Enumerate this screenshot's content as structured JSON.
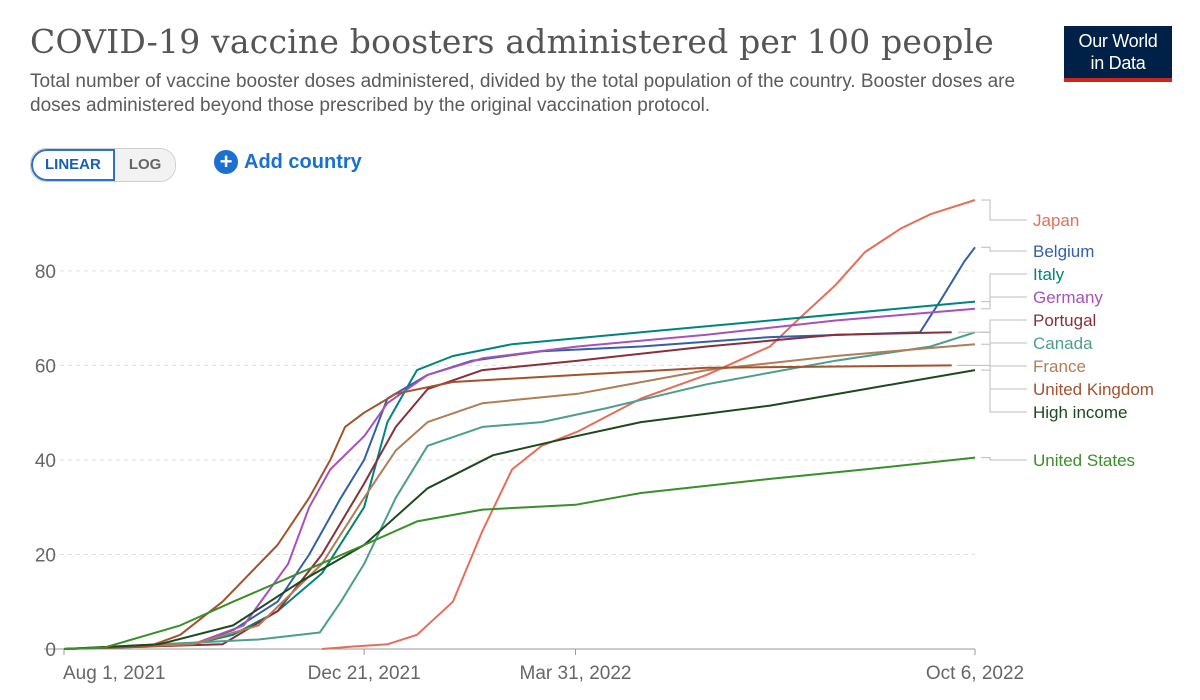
{
  "header": {
    "title": "COVID-19 vaccine boosters administered per 100 people",
    "subtitle": "Total number of vaccine booster doses administered, divided by the total population of the country. Booster doses are doses administered beyond those prescribed by the original vaccination protocol.",
    "logo_line1": "Our World",
    "logo_line2": "in Data"
  },
  "controls": {
    "linear_label": "LINEAR",
    "log_label": "LOG",
    "add_country_label": "Add country",
    "scale_selected": "linear"
  },
  "chart_data": {
    "type": "line",
    "title": "COVID-19 vaccine boosters administered per 100 people",
    "xlabel": "",
    "ylabel": "",
    "ylim": [
      0,
      95
    ],
    "yticks": [
      0,
      20,
      40,
      60,
      80
    ],
    "xlim": [
      "2021-08-01",
      "2022-10-06"
    ],
    "xticks": [
      {
        "date": "2021-08-01",
        "label": "Aug 1, 2021"
      },
      {
        "date": "2021-12-21",
        "label": "Dec 21, 2021"
      },
      {
        "date": "2022-03-31",
        "label": "Mar 31, 2022"
      },
      {
        "date": "2022-10-06",
        "label": "Oct 6, 2022"
      }
    ],
    "grid": "horizontal dashed",
    "legend": "right",
    "series": [
      {
        "name": "Japan",
        "color": "#e56e5a",
        "points": [
          [
            "2021-12-01",
            0
          ],
          [
            "2021-12-15",
            0.5
          ],
          [
            "2022-01-01",
            1
          ],
          [
            "2022-01-15",
            3
          ],
          [
            "2022-02-01",
            10
          ],
          [
            "2022-02-15",
            25
          ],
          [
            "2022-03-01",
            38
          ],
          [
            "2022-03-15",
            43
          ],
          [
            "2022-04-01",
            46
          ],
          [
            "2022-05-01",
            53
          ],
          [
            "2022-06-01",
            58
          ],
          [
            "2022-07-01",
            64
          ],
          [
            "2022-07-15",
            70
          ],
          [
            "2022-08-01",
            77
          ],
          [
            "2022-08-15",
            84
          ],
          [
            "2022-09-01",
            89
          ],
          [
            "2022-09-15",
            92
          ],
          [
            "2022-10-06",
            95
          ]
        ]
      },
      {
        "name": "Belgium",
        "color": "#3360a9",
        "points": [
          [
            "2021-08-01",
            0
          ],
          [
            "2021-10-01",
            1
          ],
          [
            "2021-10-20",
            4
          ],
          [
            "2021-11-10",
            10
          ],
          [
            "2021-11-25",
            20
          ],
          [
            "2021-12-10",
            32
          ],
          [
            "2021-12-21",
            40
          ],
          [
            "2022-01-01",
            53
          ],
          [
            "2022-01-20",
            58
          ],
          [
            "2022-02-10",
            61
          ],
          [
            "2022-03-15",
            63
          ],
          [
            "2022-05-01",
            64
          ],
          [
            "2022-07-01",
            66
          ],
          [
            "2022-09-10",
            67
          ],
          [
            "2022-09-20",
            74
          ],
          [
            "2022-10-01",
            82
          ],
          [
            "2022-10-06",
            85
          ]
        ]
      },
      {
        "name": "Italy",
        "color": "#00847e",
        "points": [
          [
            "2021-08-01",
            0
          ],
          [
            "2021-10-01",
            1
          ],
          [
            "2021-10-20",
            3
          ],
          [
            "2021-11-10",
            8
          ],
          [
            "2021-12-01",
            16
          ],
          [
            "2021-12-21",
            30
          ],
          [
            "2022-01-01",
            48
          ],
          [
            "2022-01-15",
            59
          ],
          [
            "2022-02-01",
            62
          ],
          [
            "2022-03-01",
            64.5
          ],
          [
            "2022-05-01",
            67
          ],
          [
            "2022-07-01",
            69.5
          ],
          [
            "2022-10-06",
            73.5
          ]
        ]
      },
      {
        "name": "Germany",
        "color": "#a652ba",
        "points": [
          [
            "2021-08-01",
            0
          ],
          [
            "2021-10-01",
            1
          ],
          [
            "2021-10-25",
            5
          ],
          [
            "2021-11-15",
            18
          ],
          [
            "2021-11-25",
            30
          ],
          [
            "2021-12-05",
            38
          ],
          [
            "2021-12-21",
            45
          ],
          [
            "2022-01-01",
            52
          ],
          [
            "2022-01-20",
            58
          ],
          [
            "2022-02-15",
            61.5
          ],
          [
            "2022-04-01",
            64
          ],
          [
            "2022-06-01",
            66.5
          ],
          [
            "2022-08-01",
            69.5
          ],
          [
            "2022-10-06",
            72
          ]
        ]
      },
      {
        "name": "Portugal",
        "color": "#883039",
        "points": [
          [
            "2021-08-01",
            0
          ],
          [
            "2021-10-15",
            1
          ],
          [
            "2021-11-10",
            8
          ],
          [
            "2021-12-01",
            20
          ],
          [
            "2021-12-21",
            35
          ],
          [
            "2022-01-05",
            47
          ],
          [
            "2022-01-20",
            55
          ],
          [
            "2022-02-15",
            59
          ],
          [
            "2022-04-01",
            61
          ],
          [
            "2022-06-01",
            64
          ],
          [
            "2022-08-01",
            66.5
          ],
          [
            "2022-09-25",
            67
          ]
        ]
      },
      {
        "name": "Canada",
        "color": "#4c9e8b",
        "points": [
          [
            "2021-08-01",
            0
          ],
          [
            "2021-11-01",
            2
          ],
          [
            "2021-11-30",
            3.5
          ],
          [
            "2021-12-10",
            10
          ],
          [
            "2021-12-21",
            18
          ],
          [
            "2022-01-05",
            32
          ],
          [
            "2022-01-20",
            43
          ],
          [
            "2022-02-15",
            47
          ],
          [
            "2022-03-15",
            48
          ],
          [
            "2022-04-15",
            51
          ],
          [
            "2022-06-01",
            56
          ],
          [
            "2022-08-01",
            61
          ],
          [
            "2022-09-15",
            64
          ],
          [
            "2022-10-06",
            67
          ]
        ]
      },
      {
        "name": "France",
        "color": "#b07d56",
        "points": [
          [
            "2021-08-01",
            0
          ],
          [
            "2021-10-01",
            1
          ],
          [
            "2021-11-01",
            5
          ],
          [
            "2021-12-01",
            18
          ],
          [
            "2021-12-21",
            32
          ],
          [
            "2022-01-05",
            42
          ],
          [
            "2022-01-20",
            48
          ],
          [
            "2022-02-15",
            52
          ],
          [
            "2022-04-01",
            54
          ],
          [
            "2022-06-01",
            59
          ],
          [
            "2022-08-01",
            62
          ],
          [
            "2022-10-06",
            64.5
          ]
        ]
      },
      {
        "name": "United Kingdom",
        "color": "#a2522d",
        "points": [
          [
            "2021-08-01",
            0
          ],
          [
            "2021-09-10",
            0.5
          ],
          [
            "2021-09-25",
            3
          ],
          [
            "2021-10-15",
            10
          ],
          [
            "2021-11-10",
            22
          ],
          [
            "2021-11-25",
            32
          ],
          [
            "2021-12-05",
            40
          ],
          [
            "2021-12-12",
            47
          ],
          [
            "2021-12-21",
            50
          ],
          [
            "2022-01-05",
            54
          ],
          [
            "2022-02-01",
            56.5
          ],
          [
            "2022-04-01",
            58
          ],
          [
            "2022-06-01",
            59.5
          ],
          [
            "2022-09-25",
            60
          ]
        ]
      },
      {
        "name": "High income",
        "color": "#1c4a1c",
        "points": [
          [
            "2021-08-01",
            0
          ],
          [
            "2021-09-15",
            1
          ],
          [
            "2021-10-20",
            5
          ],
          [
            "2021-11-20",
            14
          ],
          [
            "2021-12-21",
            22
          ],
          [
            "2022-01-20",
            34
          ],
          [
            "2022-02-20",
            41
          ],
          [
            "2022-03-31",
            45
          ],
          [
            "2022-05-01",
            48
          ],
          [
            "2022-07-01",
            51.5
          ],
          [
            "2022-08-15",
            55
          ],
          [
            "2022-10-06",
            59
          ]
        ]
      },
      {
        "name": "United States",
        "color": "#3b8e2a",
        "points": [
          [
            "2021-08-01",
            0
          ],
          [
            "2021-08-20",
            0.3
          ],
          [
            "2021-09-25",
            5
          ],
          [
            "2021-10-20",
            10
          ],
          [
            "2021-11-20",
            16
          ],
          [
            "2021-12-21",
            22
          ],
          [
            "2022-01-15",
            27
          ],
          [
            "2022-02-15",
            29.5
          ],
          [
            "2022-03-31",
            30.5
          ],
          [
            "2022-05-01",
            33
          ],
          [
            "2022-07-01",
            36
          ],
          [
            "2022-08-15",
            38
          ],
          [
            "2022-10-06",
            40.5
          ]
        ]
      }
    ]
  }
}
